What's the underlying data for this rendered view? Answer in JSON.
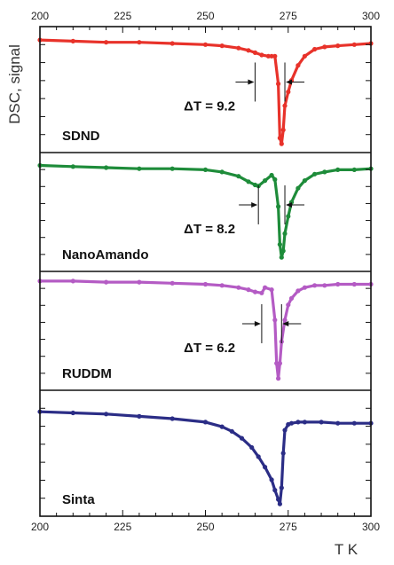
{
  "chart_data": {
    "type": "line",
    "xlabel": "T K",
    "ylabel": "DSC, signal",
    "xlim": [
      200,
      300
    ],
    "x_ticks": [
      "200",
      "225",
      "250",
      "275",
      "300"
    ],
    "grid": false,
    "panels": [
      {
        "label": "SDND",
        "color": "#e8322a",
        "delta_label": "ΔT = 9.2",
        "delta_t": 9.2,
        "markers_left_x": 265,
        "markers_right_x": 274,
        "x": [
          200,
          210,
          220,
          230,
          240,
          250,
          255,
          260,
          263,
          265,
          267,
          269,
          270,
          271,
          272,
          272.5,
          273,
          273.5,
          274,
          275,
          276,
          278,
          280,
          283,
          286,
          290,
          295,
          300
        ],
        "y": [
          0.93,
          0.92,
          0.91,
          0.91,
          0.9,
          0.89,
          0.88,
          0.86,
          0.84,
          0.82,
          0.8,
          0.79,
          0.79,
          0.79,
          0.55,
          0.08,
          0.03,
          0.15,
          0.36,
          0.48,
          0.58,
          0.71,
          0.79,
          0.85,
          0.87,
          0.88,
          0.89,
          0.9
        ]
      },
      {
        "label": "NanoAmando",
        "color": "#1e8c3a",
        "delta_label": "ΔT = 8.2",
        "delta_t": 8.2,
        "markers_left_x": 266,
        "markers_right_x": 274,
        "x": [
          200,
          210,
          220,
          230,
          240,
          250,
          255,
          260,
          263,
          265,
          266,
          268,
          270,
          271,
          272,
          272.5,
          273,
          273.5,
          274,
          275,
          276,
          278,
          280,
          283,
          286,
          290,
          295,
          300
        ],
        "y": [
          0.93,
          0.92,
          0.91,
          0.9,
          0.9,
          0.89,
          0.87,
          0.83,
          0.78,
          0.75,
          0.74,
          0.79,
          0.84,
          0.8,
          0.55,
          0.2,
          0.08,
          0.14,
          0.3,
          0.46,
          0.59,
          0.72,
          0.79,
          0.85,
          0.87,
          0.89,
          0.89,
          0.9
        ]
      },
      {
        "label": "RUDDM",
        "color": "#b45bc4",
        "delta_label": "ΔT = 6.2",
        "delta_t": 6.2,
        "markers_left_x": 267,
        "markers_right_x": 273,
        "x": [
          200,
          210,
          220,
          230,
          240,
          250,
          255,
          260,
          263,
          265,
          267,
          268,
          270,
          271,
          271.5,
          272,
          272.5,
          273,
          274,
          275,
          276,
          278,
          280,
          283,
          286,
          290,
          295,
          300
        ],
        "y": [
          0.96,
          0.96,
          0.95,
          0.95,
          0.94,
          0.93,
          0.92,
          0.9,
          0.88,
          0.86,
          0.85,
          0.9,
          0.88,
          0.6,
          0.2,
          0.06,
          0.2,
          0.4,
          0.6,
          0.74,
          0.8,
          0.87,
          0.9,
          0.92,
          0.92,
          0.93,
          0.93,
          0.93
        ]
      },
      {
        "label": "Sinta",
        "color": "#2b2d86",
        "x": [
          200,
          210,
          220,
          230,
          240,
          250,
          255,
          258,
          261,
          264,
          266,
          268,
          270,
          271,
          272,
          272.5,
          273,
          273.5,
          274,
          275,
          276,
          278,
          280,
          285,
          290,
          295,
          300
        ],
        "y": [
          0.86,
          0.85,
          0.84,
          0.82,
          0.8,
          0.77,
          0.73,
          0.69,
          0.63,
          0.55,
          0.47,
          0.38,
          0.27,
          0.18,
          0.1,
          0.06,
          0.2,
          0.5,
          0.7,
          0.75,
          0.76,
          0.77,
          0.77,
          0.77,
          0.76,
          0.76,
          0.76
        ]
      }
    ]
  }
}
